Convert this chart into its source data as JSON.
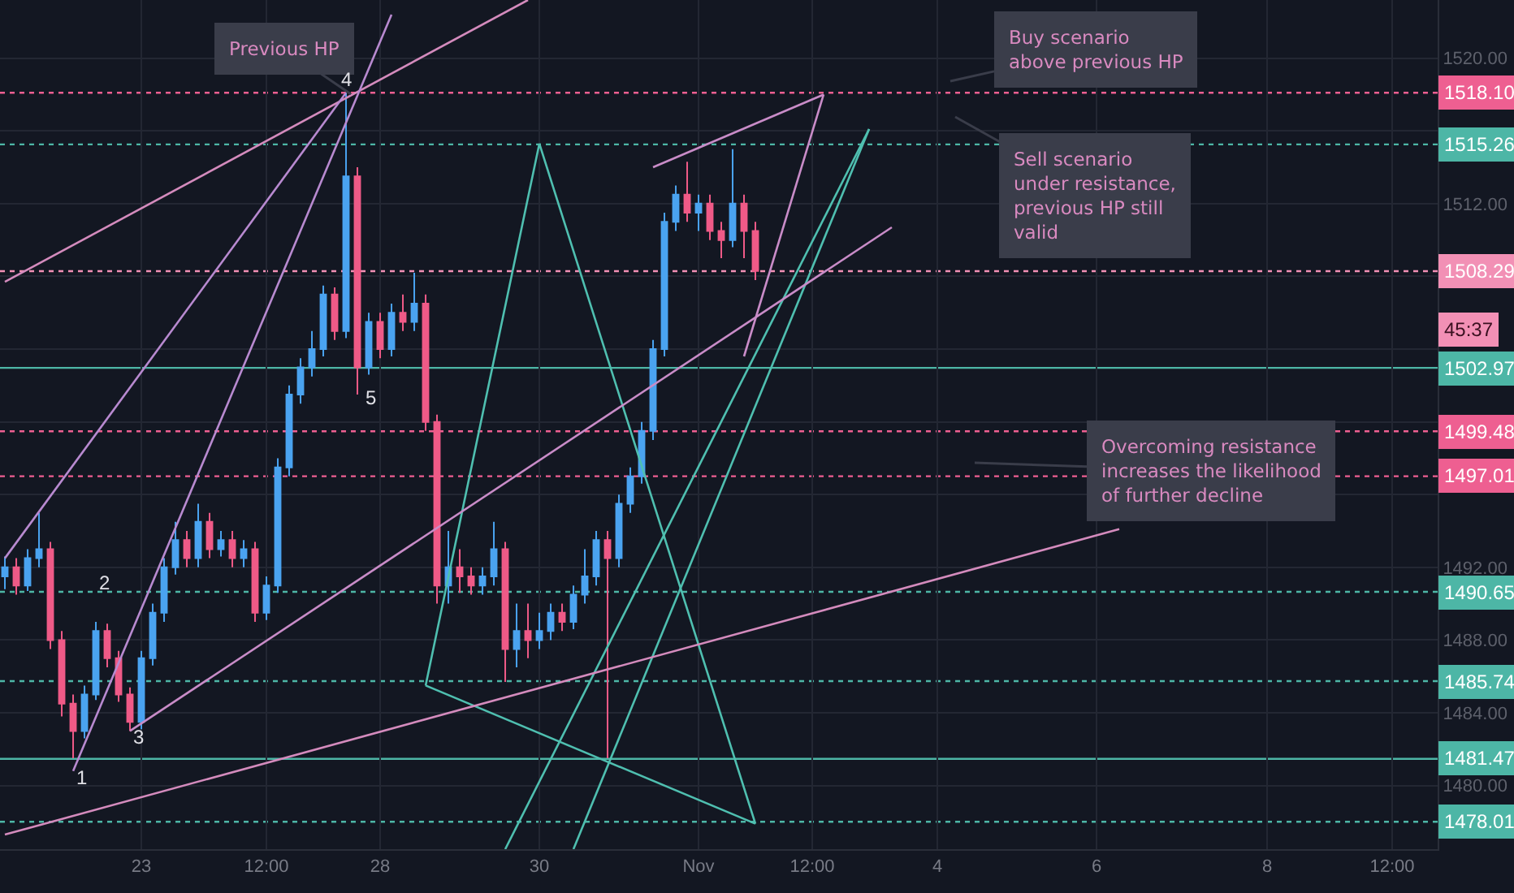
{
  "chart_data": {
    "type": "candlestick",
    "categories": [
      null,
      null,
      null,
      null,
      null,
      null,
      null,
      null,
      null,
      null,
      null,
      null,
      "23",
      null,
      null,
      null,
      null,
      null,
      null,
      null,
      null,
      null,
      null,
      "12:00",
      null,
      null,
      null,
      null,
      null,
      null,
      null,
      null,
      null,
      "28",
      null,
      null,
      null,
      null,
      null,
      null,
      null,
      null,
      null,
      null,
      null,
      null,
      null,
      "30",
      null,
      null,
      null,
      null,
      null,
      null,
      null,
      null,
      null,
      null,
      null,
      null,
      null,
      "Nov",
      null,
      null,
      null,
      null,
      null,
      null,
      null,
      null,
      null,
      "12:00",
      null,
      null,
      null,
      null,
      null,
      null,
      null,
      null,
      null,
      null,
      "4",
      null,
      null,
      null,
      null,
      null,
      null,
      null,
      null,
      null,
      null,
      null,
      null,
      null,
      "6",
      null,
      null,
      null,
      null,
      null,
      null,
      null,
      null,
      null,
      null,
      null,
      null,
      null,
      null,
      "8",
      null,
      null,
      null,
      null,
      null,
      null,
      null,
      null,
      null,
      null,
      "12:00",
      null,
      null,
      null,
      null
    ],
    "ohlc": [
      [
        1491.5,
        1492.6,
        1490.8,
        1492.0
      ],
      [
        1492.0,
        1492.5,
        1490.5,
        1491.0
      ],
      [
        1491.0,
        1493.0,
        1490.7,
        1492.5
      ],
      [
        1492.5,
        1495.0,
        1492.0,
        1493.0
      ],
      [
        1493.0,
        1493.4,
        1487.5,
        1488.0
      ],
      [
        1488.0,
        1488.5,
        1483.8,
        1484.5
      ],
      [
        1484.5,
        1485.0,
        1481.5,
        1483.0
      ],
      [
        1483.0,
        1485.5,
        1482.6,
        1485.0
      ],
      [
        1485.0,
        1489.0,
        1484.7,
        1488.5
      ],
      [
        1488.5,
        1488.9,
        1486.5,
        1487.0
      ],
      [
        1487.0,
        1487.4,
        1484.6,
        1485.0
      ],
      [
        1485.0,
        1485.4,
        1483.0,
        1483.5
      ],
      [
        1483.5,
        1487.4,
        1483.1,
        1487.0
      ],
      [
        1487.0,
        1490.0,
        1486.6,
        1489.5
      ],
      [
        1489.5,
        1492.5,
        1489.0,
        1492.0
      ],
      [
        1492.0,
        1494.5,
        1491.6,
        1493.5
      ],
      [
        1493.5,
        1494.0,
        1492.0,
        1492.5
      ],
      [
        1492.5,
        1495.5,
        1492.0,
        1494.5
      ],
      [
        1494.5,
        1495.0,
        1492.5,
        1493.0
      ],
      [
        1493.0,
        1494.0,
        1492.6,
        1493.5
      ],
      [
        1493.5,
        1494.0,
        1492.0,
        1492.5
      ],
      [
        1492.5,
        1493.5,
        1492.0,
        1493.0
      ],
      [
        1493.0,
        1493.4,
        1489.0,
        1489.5
      ],
      [
        1489.5,
        1491.5,
        1489.1,
        1491.0
      ],
      [
        1491.0,
        1498.0,
        1490.6,
        1497.5
      ],
      [
        1497.5,
        1502.0,
        1497.0,
        1501.5
      ],
      [
        1501.5,
        1503.5,
        1501.0,
        1503.0
      ],
      [
        1503.0,
        1505.0,
        1502.5,
        1504.0
      ],
      [
        1504.0,
        1507.5,
        1503.6,
        1507.0
      ],
      [
        1507.0,
        1507.4,
        1504.5,
        1505.0
      ],
      [
        1505.0,
        1518.1,
        1504.6,
        1513.5
      ],
      [
        1513.5,
        1514.0,
        1501.5,
        1503.0
      ],
      [
        1503.0,
        1506.0,
        1502.6,
        1505.5
      ],
      [
        1505.5,
        1506.0,
        1503.5,
        1504.0
      ],
      [
        1504.0,
        1506.5,
        1503.6,
        1506.0
      ],
      [
        1506.0,
        1507.0,
        1505.0,
        1505.5
      ],
      [
        1505.5,
        1508.2,
        1505.0,
        1506.5
      ],
      [
        1506.5,
        1507.0,
        1499.5,
        1500.0
      ],
      [
        1500.0,
        1500.4,
        1490.0,
        1491.0
      ],
      [
        1491.0,
        1494.0,
        1490.0,
        1492.0
      ],
      [
        1492.0,
        1493.0,
        1490.6,
        1491.5
      ],
      [
        1491.5,
        1492.0,
        1490.5,
        1491.0
      ],
      [
        1491.0,
        1492.0,
        1490.5,
        1491.5
      ],
      [
        1491.5,
        1494.5,
        1491.0,
        1493.0
      ],
      [
        1493.0,
        1493.4,
        1485.7,
        1487.5
      ],
      [
        1487.5,
        1490.0,
        1486.5,
        1488.5
      ],
      [
        1488.5,
        1490.0,
        1487.0,
        1488.0
      ],
      [
        1488.0,
        1489.5,
        1487.5,
        1488.5
      ],
      [
        1488.5,
        1490.0,
        1488.0,
        1489.5
      ],
      [
        1489.5,
        1490.0,
        1488.5,
        1489.0
      ],
      [
        1489.0,
        1491.0,
        1488.6,
        1490.5
      ],
      [
        1490.5,
        1493.0,
        1490.0,
        1491.5
      ],
      [
        1491.5,
        1494.0,
        1491.0,
        1493.5
      ],
      [
        1493.5,
        1494.0,
        1481.5,
        1492.5
      ],
      [
        1492.5,
        1496.0,
        1492.0,
        1495.5
      ],
      [
        1495.5,
        1497.5,
        1495.0,
        1497.0
      ],
      [
        1497.0,
        1500.0,
        1496.6,
        1499.5
      ],
      [
        1499.5,
        1504.5,
        1499.0,
        1504.0
      ],
      [
        1504.0,
        1511.5,
        1503.6,
        1511.0
      ],
      [
        1511.0,
        1513.0,
        1510.5,
        1512.5
      ],
      [
        1512.5,
        1514.3,
        1511.0,
        1511.5
      ],
      [
        1511.5,
        1512.5,
        1510.5,
        1512.0
      ],
      [
        1512.0,
        1512.5,
        1510.0,
        1510.5
      ],
      [
        1510.5,
        1511.0,
        1509.0,
        1510.0
      ],
      [
        1510.0,
        1515.0,
        1509.6,
        1512.0
      ],
      [
        1512.0,
        1512.5,
        1509.0,
        1510.5
      ],
      [
        1510.5,
        1511.0,
        1507.8,
        1508.3
      ],
      null,
      null,
      null,
      null,
      null,
      null,
      null,
      null,
      null,
      null,
      null,
      null,
      null,
      null,
      null,
      null,
      null,
      null,
      null,
      null,
      null,
      null,
      null,
      null,
      null,
      null,
      null,
      null,
      null,
      null,
      null,
      null,
      null,
      null,
      null,
      null,
      null,
      null,
      null,
      null,
      null,
      null,
      null,
      null,
      null,
      null,
      null,
      null,
      null,
      null,
      null,
      null,
      null,
      null,
      null,
      null,
      null,
      null,
      null,
      null
    ],
    "colors": [
      "#4aa3f0",
      "#ef5a87",
      "#4aa3f0",
      "#4aa3f0",
      "#ef5a87",
      "#ef5a87",
      "#ef5a87",
      "#4aa3f0",
      "#4aa3f0",
      "#ef5a87",
      "#ef5a87",
      "#ef5a87",
      "#4aa3f0",
      "#4aa3f0",
      "#4aa3f0",
      "#4aa3f0",
      "#ef5a87",
      "#4aa3f0",
      "#ef5a87",
      "#4aa3f0",
      "#ef5a87",
      "#4aa3f0",
      "#ef5a87",
      "#4aa3f0",
      "#4aa3f0",
      "#4aa3f0",
      "#4aa3f0",
      "#4aa3f0",
      "#4aa3f0",
      "#ef5a87",
      "#4aa3f0",
      "#ef5a87",
      "#4aa3f0",
      "#ef5a87",
      "#4aa3f0",
      "#ef5a87",
      "#4aa3f0",
      "#ef5a87",
      "#ef5a87",
      "#4aa3f0",
      "#ef5a87",
      "#ef5a87",
      "#4aa3f0",
      "#4aa3f0",
      "#ef5a87",
      "#4aa3f0",
      "#ef5a87",
      "#4aa3f0",
      "#4aa3f0",
      "#ef5a87",
      "#4aa3f0",
      "#4aa3f0",
      "#4aa3f0",
      "#ef5a87",
      "#4aa3f0",
      "#4aa3f0",
      "#4aa3f0",
      "#4aa3f0",
      "#4aa3f0",
      "#4aa3f0",
      "#ef5a87",
      "#4aa3f0",
      "#ef5a87",
      "#ef5a87",
      "#4aa3f0",
      "#ef5a87",
      "#ef5a87",
      null,
      null,
      null,
      null,
      null,
      null,
      null,
      null,
      null,
      null,
      null,
      null,
      null,
      null,
      null,
      null,
      null,
      null,
      null,
      null,
      null,
      null,
      null,
      null,
      null,
      null,
      null,
      null,
      null,
      null,
      null,
      null,
      null,
      null,
      null,
      null,
      null,
      null,
      null,
      null,
      null,
      null,
      null,
      null,
      null,
      null,
      null,
      null,
      null,
      null,
      null,
      null,
      null,
      null,
      null,
      null,
      null,
      null,
      null,
      null
    ],
    "series": [
      {
        "type": "line",
        "color": "#4fbfb0",
        "values": [
          null,
          null,
          null,
          null,
          null,
          null,
          null,
          null,
          null,
          null,
          null,
          null,
          null,
          null,
          null,
          null,
          null,
          null,
          null,
          null,
          null,
          null,
          null,
          null,
          null,
          null,
          null,
          null,
          null,
          null,
          null,
          null,
          null,
          null,
          null,
          null,
          null,
          1485.5,
          null,
          null,
          null,
          null,
          null,
          null,
          null,
          null,
          null,
          1515.3,
          null,
          null,
          null,
          null,
          null,
          null,
          null,
          null,
          null,
          null,
          null,
          null,
          null,
          null,
          null,
          null,
          null,
          null,
          1477.9,
          null,
          null,
          null,
          null,
          null,
          null,
          null,
          null,
          null,
          null,
          null,
          null,
          null,
          null,
          null,
          null,
          null,
          null,
          null,
          null,
          null,
          null,
          null,
          null,
          null,
          null,
          null,
          null,
          null,
          null,
          null,
          null,
          null,
          null,
          null,
          null,
          null,
          null,
          null,
          null,
          null,
          null,
          null,
          null,
          null,
          null,
          null,
          null,
          null,
          null,
          null,
          null,
          null,
          null,
          null,
          null,
          null,
          null,
          null,
          null
        ]
      },
      {
        "type": "line",
        "color": "#4fbfb0",
        "values": [
          null,
          null,
          null,
          null,
          null,
          null,
          null,
          null,
          null,
          null,
          null,
          null,
          null,
          null,
          null,
          null,
          null,
          null,
          null,
          null,
          null,
          null,
          null,
          null,
          null,
          null,
          null,
          null,
          null,
          null,
          null,
          null,
          null,
          null,
          null,
          null,
          null,
          1485.5,
          null,
          null,
          null,
          null,
          null,
          null,
          null,
          null,
          null,
          null,
          null,
          null,
          null,
          null,
          null,
          null,
          null,
          null,
          null,
          null,
          null,
          null,
          null,
          null,
          null,
          null,
          null,
          null,
          1477.9,
          null,
          null,
          null,
          null,
          null,
          null,
          null,
          null,
          null,
          null,
          null,
          null,
          null,
          null,
          null,
          null,
          null,
          null,
          null,
          null,
          null,
          null,
          null,
          null,
          null,
          null,
          null,
          null,
          null,
          null,
          null,
          null,
          null,
          null,
          null,
          null,
          null,
          null,
          null,
          null,
          null,
          null,
          null,
          null,
          null,
          null,
          null,
          null,
          null,
          null,
          null,
          null,
          null,
          null,
          null,
          null,
          null,
          null,
          null,
          null
        ]
      },
      {
        "type": "line",
        "color": "#4fbfb0",
        "values": [
          null,
          null,
          null,
          null,
          null,
          null,
          null,
          null,
          null,
          null,
          null,
          null,
          null,
          null,
          null,
          null,
          null,
          null,
          null,
          null,
          null,
          null,
          null,
          null,
          null,
          null,
          null,
          null,
          null,
          null,
          null,
          null,
          null,
          null,
          null,
          null,
          null,
          null,
          null,
          null,
          null,
          null,
          null,
          null,
          1476.5,
          null,
          null,
          null,
          null,
          null,
          null,
          null,
          null,
          null,
          null,
          null,
          null,
          null,
          null,
          null,
          null,
          null,
          null,
          null,
          null,
          null,
          null,
          null,
          null,
          null,
          null,
          null,
          null,
          null,
          null,
          null,
          1516.1,
          null,
          null,
          null,
          null,
          null,
          null,
          null,
          null,
          null,
          null,
          null,
          null,
          null,
          null,
          null,
          null,
          null,
          null,
          null,
          null,
          null,
          null,
          null,
          null,
          null,
          null,
          null,
          null,
          null,
          null,
          null,
          null,
          null,
          null,
          null,
          null,
          null,
          null,
          null,
          null,
          null,
          null,
          null,
          null,
          null,
          null,
          null,
          null,
          null,
          null
        ]
      },
      {
        "type": "line",
        "color": "#4fbfb0",
        "values": [
          null,
          null,
          null,
          null,
          null,
          null,
          null,
          null,
          null,
          null,
          null,
          null,
          null,
          null,
          null,
          null,
          null,
          null,
          null,
          null,
          null,
          null,
          null,
          null,
          null,
          null,
          null,
          null,
          null,
          null,
          null,
          null,
          null,
          null,
          null,
          null,
          null,
          null,
          null,
          null,
          null,
          null,
          null,
          null,
          null,
          null,
          null,
          null,
          null,
          null,
          1476.5,
          null,
          null,
          null,
          null,
          null,
          null,
          null,
          null,
          null,
          null,
          null,
          null,
          null,
          null,
          null,
          null,
          null,
          null,
          null,
          null,
          null,
          null,
          null,
          null,
          null,
          1516.1,
          null,
          null,
          null,
          null,
          null,
          null,
          null,
          null,
          null,
          null,
          null,
          null,
          null,
          null,
          null,
          null,
          null,
          null,
          null,
          null,
          null,
          null,
          null,
          null,
          null,
          null,
          null,
          null,
          null,
          null,
          null,
          null,
          null,
          null,
          null,
          null,
          null,
          null,
          null,
          null,
          null,
          null,
          null,
          null,
          null,
          null,
          null,
          null,
          null,
          null
        ]
      },
      {
        "type": "line",
        "color": "#d48bbd",
        "values": [
          1477.3,
          null,
          null,
          null,
          null,
          null,
          null,
          null,
          null,
          null,
          null,
          null,
          null,
          null,
          null,
          null,
          null,
          null,
          null,
          null,
          null,
          null,
          null,
          null,
          null,
          null,
          null,
          null,
          null,
          null,
          null,
          null,
          null,
          null,
          null,
          null,
          null,
          null,
          null,
          null,
          null,
          null,
          null,
          null,
          null,
          null,
          null,
          null,
          null,
          null,
          null,
          null,
          null,
          null,
          null,
          null,
          null,
          null,
          null,
          null,
          null,
          null,
          null,
          null,
          null,
          null,
          null,
          null,
          null,
          null,
          null,
          null,
          null,
          null,
          null,
          null,
          null,
          null,
          null,
          null,
          null,
          null,
          null,
          null,
          null,
          null,
          null,
          null,
          null,
          null,
          null,
          null,
          null,
          null,
          null,
          null,
          null,
          null,
          1494.1,
          null,
          null,
          null,
          null,
          null,
          null,
          null,
          null,
          null,
          null,
          null,
          null,
          null,
          null,
          null,
          null,
          null,
          null,
          null,
          null,
          null,
          null,
          null,
          null,
          null,
          null,
          null,
          null
        ]
      },
      {
        "type": "line",
        "color": "#d48bbd",
        "values": [
          1507.7,
          null,
          null,
          null,
          null,
          null,
          null,
          null,
          null,
          null,
          null,
          null,
          null,
          null,
          null,
          null,
          null,
          null,
          null,
          null,
          null,
          null,
          null,
          null,
          null,
          null,
          null,
          null,
          null,
          null,
          null,
          null,
          null,
          null,
          null,
          null,
          null,
          null,
          null,
          null,
          null,
          null,
          null,
          null,
          null,
          null,
          1523.2,
          null,
          null,
          null,
          null,
          null,
          null,
          null,
          null,
          null,
          null,
          null,
          null,
          null,
          null,
          null,
          null,
          null,
          null,
          null,
          null,
          null,
          null,
          null,
          null,
          null,
          null,
          null,
          null,
          null,
          null,
          null,
          null,
          null,
          null,
          null,
          null,
          null,
          null,
          null,
          null,
          null,
          null,
          null,
          null,
          null,
          null,
          null,
          null,
          null,
          null,
          null,
          null,
          null,
          null,
          null,
          null,
          null,
          null,
          null,
          null,
          null,
          null,
          null,
          null,
          null,
          null,
          null,
          null,
          null,
          null,
          null,
          null,
          null,
          null,
          null,
          null,
          null,
          null,
          null,
          null
        ]
      },
      {
        "type": "line",
        "color": "#b88ad0",
        "values": [
          null,
          null,
          null,
          null,
          null,
          null,
          1480.8,
          null,
          null,
          null,
          null,
          null,
          null,
          null,
          null,
          null,
          null,
          null,
          null,
          null,
          null,
          null,
          null,
          null,
          null,
          null,
          null,
          null,
          null,
          null,
          null,
          null,
          null,
          null,
          1522.4,
          null,
          null,
          null,
          null,
          null,
          null,
          null,
          null,
          null,
          null,
          null,
          null,
          null,
          null,
          null,
          null,
          null,
          null,
          null,
          null,
          null,
          null,
          null,
          null,
          null,
          null,
          null,
          null,
          null,
          null,
          null,
          null,
          null,
          null,
          null,
          null,
          null,
          null,
          null,
          null,
          null,
          null,
          null,
          null,
          null,
          null,
          null,
          null,
          null,
          null,
          null,
          null,
          null,
          null,
          null,
          null,
          null,
          null,
          null,
          null,
          null,
          null,
          null,
          null,
          null,
          null,
          null,
          null,
          null,
          null,
          null,
          null,
          null,
          null,
          null,
          null,
          null,
          null,
          null,
          null,
          null,
          null,
          null,
          null,
          null,
          null,
          null,
          null,
          null,
          null,
          null,
          null
        ]
      },
      {
        "type": "line",
        "color": "#c98cc8",
        "values": [
          null,
          null,
          null,
          null,
          null,
          null,
          null,
          null,
          null,
          null,
          null,
          1483.0,
          null,
          null,
          null,
          null,
          null,
          null,
          null,
          null,
          null,
          null,
          null,
          null,
          null,
          null,
          null,
          null,
          null,
          null,
          null,
          null,
          null,
          null,
          null,
          null,
          null,
          null,
          null,
          null,
          null,
          null,
          null,
          null,
          null,
          null,
          null,
          null,
          null,
          null,
          null,
          null,
          null,
          null,
          null,
          null,
          null,
          null,
          null,
          null,
          null,
          null,
          null,
          null,
          null,
          null,
          null,
          null,
          null,
          null,
          null,
          null,
          null,
          null,
          null,
          null,
          null,
          null,
          1510.7,
          null,
          null,
          null,
          null,
          null,
          null,
          null,
          null,
          null,
          null,
          null,
          null,
          null,
          null,
          null,
          null,
          null,
          null,
          null,
          null,
          null,
          null,
          null,
          null,
          null,
          null,
          null,
          null,
          null,
          null,
          null,
          null,
          null,
          null,
          null,
          null,
          null,
          null,
          null,
          null,
          null,
          null,
          null,
          null,
          null,
          null,
          null,
          null
        ]
      },
      {
        "type": "line",
        "color": "#b88ad0",
        "values": [
          1492.5,
          null,
          null,
          null,
          null,
          null,
          null,
          null,
          null,
          null,
          null,
          null,
          null,
          null,
          null,
          null,
          null,
          null,
          null,
          null,
          null,
          null,
          null,
          null,
          null,
          null,
          null,
          null,
          null,
          null,
          1518.1,
          null,
          null,
          null,
          null,
          null,
          null,
          null,
          null,
          null,
          null,
          null,
          null,
          null,
          null,
          null,
          null,
          null,
          null,
          null,
          null,
          null,
          null,
          null,
          null,
          null,
          null,
          null,
          null,
          null,
          null,
          null,
          null,
          null,
          null,
          null,
          null,
          null,
          null,
          null,
          null,
          null,
          null,
          null,
          null,
          null,
          null,
          null,
          null,
          null,
          null,
          null,
          null,
          null,
          null,
          null,
          null,
          null,
          null,
          null,
          null,
          null,
          null,
          null,
          null,
          null,
          null,
          null,
          null,
          null,
          null,
          null,
          null,
          null,
          null,
          null,
          null,
          null,
          null,
          null,
          null,
          null,
          null,
          null,
          null,
          null,
          null,
          null,
          null,
          null,
          null,
          null,
          null,
          null,
          null,
          null,
          null
        ]
      },
      {
        "type": "line",
        "color": "#c98cc8",
        "values": [
          null,
          null,
          null,
          null,
          null,
          null,
          null,
          null,
          null,
          null,
          null,
          null,
          null,
          null,
          null,
          null,
          null,
          null,
          null,
          null,
          null,
          null,
          null,
          null,
          null,
          null,
          null,
          null,
          null,
          null,
          null,
          null,
          null,
          null,
          null,
          null,
          null,
          null,
          null,
          null,
          null,
          null,
          null,
          null,
          null,
          null,
          null,
          null,
          null,
          null,
          null,
          null,
          null,
          null,
          null,
          null,
          null,
          1514.0,
          null,
          null,
          null,
          null,
          null,
          null,
          null,
          null,
          null,
          null,
          null,
          null,
          null,
          null,
          1518.0,
          null,
          null,
          null,
          null,
          null,
          null,
          null,
          null,
          null,
          null,
          null,
          null,
          null,
          null,
          null,
          null,
          null,
          null,
          null,
          null,
          null,
          null,
          null,
          null,
          null,
          null,
          null,
          null,
          null,
          null,
          null,
          null,
          null,
          null,
          null,
          null,
          null,
          null,
          null,
          null,
          null,
          null,
          null,
          null,
          null,
          null,
          null,
          null,
          null,
          null,
          null,
          null,
          null,
          null
        ]
      },
      {
        "type": "line",
        "color": "#c98cc8",
        "values": [
          null,
          null,
          null,
          null,
          null,
          null,
          null,
          null,
          null,
          null,
          null,
          null,
          null,
          null,
          null,
          null,
          null,
          null,
          null,
          null,
          null,
          null,
          null,
          null,
          null,
          null,
          null,
          null,
          null,
          null,
          null,
          null,
          null,
          null,
          null,
          null,
          null,
          null,
          null,
          null,
          null,
          null,
          null,
          null,
          null,
          null,
          null,
          null,
          null,
          null,
          null,
          null,
          null,
          null,
          null,
          null,
          null,
          null,
          null,
          null,
          null,
          null,
          null,
          null,
          null,
          1503.6,
          null,
          null,
          null,
          null,
          null,
          null,
          1518.0,
          null,
          null,
          null,
          null,
          null,
          null,
          null,
          null,
          null,
          null,
          null,
          null,
          null,
          null,
          null,
          null,
          null,
          null,
          null,
          null,
          null,
          null,
          null,
          null,
          null,
          null,
          null,
          null,
          null,
          null,
          null,
          null,
          null,
          null,
          null,
          null,
          null,
          null,
          null,
          null,
          null,
          null,
          null,
          null,
          null,
          null,
          null,
          null,
          null,
          null,
          null,
          null,
          null,
          null
        ]
      }
    ],
    "ylim": [
      1476.5,
      1523.2
    ],
    "yticks": [
      {
        "value": 1480,
        "label": "1480.00"
      },
      {
        "value": 1484,
        "label": "1484.00"
      },
      {
        "value": 1488,
        "label": "1488.00"
      },
      {
        "value": 1492,
        "label": "1492.00"
      },
      {
        "value": 1496,
        "label": null
      },
      {
        "value": 1500,
        "label": null
      },
      {
        "value": 1504,
        "label": null
      },
      {
        "value": 1508,
        "label": null
      },
      {
        "value": 1512,
        "label": "1512.00"
      },
      {
        "value": 1516,
        "label": null
      },
      {
        "value": 1520,
        "label": "1520.00"
      }
    ],
    "grid": true,
    "ref_lines": [
      {
        "axis": "y",
        "value": 1518.1,
        "label": "1518.10",
        "color": "#ee5f91",
        "line_style": "dotted"
      },
      {
        "axis": "y",
        "value": 1515.26,
        "label": "1515.26",
        "color": "#4db6a6",
        "line_style": "dotted"
      },
      {
        "axis": "y",
        "value": 1508.29,
        "label": "1508.29",
        "color": "#f290b5",
        "line_style": "dotted"
      },
      {
        "axis": "y",
        "value": 1502.97,
        "label": "1502.97",
        "color": "#4db6a6",
        "line_style": "solid"
      },
      {
        "axis": "y",
        "value": 1499.48,
        "label": "1499.48",
        "color": "#ee5f91",
        "line_style": "dotted"
      },
      {
        "axis": "y",
        "value": 1497.01,
        "label": "1497.01",
        "color": "#ee5f91",
        "line_style": "dotted"
      },
      {
        "axis": "y",
        "value": 1490.65,
        "label": "1490.65",
        "color": "#4db6a6",
        "line_style": "dotted"
      },
      {
        "axis": "y",
        "value": 1485.74,
        "label": "1485.74",
        "color": "#4db6a6",
        "line_style": "dotted"
      },
      {
        "axis": "y",
        "value": 1481.47,
        "label": "1481.47",
        "color": "#4db6a6",
        "line_style": "solid"
      },
      {
        "axis": "y",
        "value": 1478.01,
        "label": "1478.01",
        "color": "#4db6a6",
        "line_style": "dotted"
      }
    ],
    "annotations": [
      "Previous HP",
      "Buy scenario\nabove previous HP",
      "Sell scenario\nunder resistance,\nprevious HP still\nvalid",
      "Overcoming resistance\nincreases the likelihood\nof further decline",
      "4",
      "5",
      "1",
      "2",
      "3",
      "45:37"
    ]
  }
}
